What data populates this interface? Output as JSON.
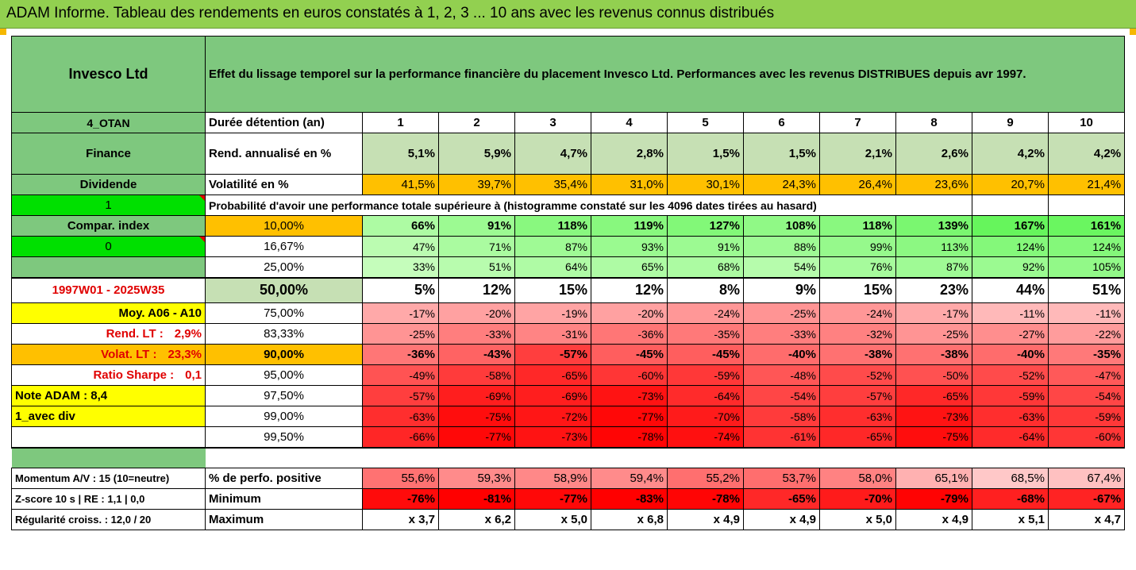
{
  "title": "ADAM Informe. Tableau des rendements en euros constatés à 1, 2, 3 ... 10 ans avec les revenus connus distribués",
  "company": "Invesco Ltd",
  "header_text": "Effet du lissage temporel sur la performance financière du placement Invesco Ltd. Performances avec les revenus DISTRIBUES depuis avr 1997.",
  "side": {
    "code": "4_OTAN",
    "sector": "Finance",
    "dividend": "Dividende",
    "one": "1",
    "compar": "Compar. index",
    "zero": "0",
    "period": "1997W01 - 2025W35",
    "moy": "Moy. A06 - A10",
    "rend_lt_label": "Rend. LT :",
    "rend_lt_value": "2,9%",
    "volat_lt_label": "Volat. LT :",
    "volat_lt_value": "23,3%",
    "sharpe_label": "Ratio Sharpe :",
    "sharpe_value": "0,1",
    "note": "Note ADAM : 8,4",
    "avec_div": "1_avec div",
    "momentum": "Momentum A/V : 15 (10=neutre)",
    "zscore": "Z-score 10 s  |  RE : 1,1  |  0,0",
    "regularite": "Régularité croiss. : 12,0 / 20"
  },
  "labels": {
    "duree": "Durée détention (an)",
    "rend": "Rend. annualisé en %",
    "vol": "Volatilité en %",
    "proba": "Probabilité d'avoir une performance totale supérieure à (histogramme constaté sur les 4096 dates tirées au hasard)",
    "perfpos": "% de perfo. positive",
    "minimum": "Minimum",
    "maximum": "Maximum"
  },
  "years": [
    "1",
    "2",
    "3",
    "4",
    "5",
    "6",
    "7",
    "8",
    "9",
    "10"
  ],
  "rend": [
    "5,1%",
    "5,9%",
    "4,7%",
    "2,8%",
    "1,5%",
    "1,5%",
    "2,1%",
    "2,6%",
    "4,2%",
    "4,2%"
  ],
  "vol": [
    "41,5%",
    "39,7%",
    "35,4%",
    "31,0%",
    "30,1%",
    "24,3%",
    "26,4%",
    "23,6%",
    "20,7%",
    "21,4%"
  ],
  "quantile_rows": [
    {
      "q": "10,00%",
      "v": [
        "66%",
        "91%",
        "118%",
        "119%",
        "127%",
        "108%",
        "118%",
        "139%",
        "167%",
        "161%"
      ]
    },
    {
      "q": "16,67%",
      "v": [
        "47%",
        "71%",
        "87%",
        "93%",
        "91%",
        "88%",
        "99%",
        "113%",
        "124%",
        "124%"
      ]
    },
    {
      "q": "25,00%",
      "v": [
        "33%",
        "51%",
        "64%",
        "65%",
        "68%",
        "54%",
        "76%",
        "87%",
        "92%",
        "105%"
      ]
    },
    {
      "q": "50,00%",
      "v": [
        "5%",
        "12%",
        "15%",
        "12%",
        "8%",
        "9%",
        "15%",
        "23%",
        "44%",
        "51%"
      ]
    },
    {
      "q": "75,00%",
      "v": [
        "-17%",
        "-20%",
        "-19%",
        "-20%",
        "-24%",
        "-25%",
        "-24%",
        "-17%",
        "-11%",
        "-11%"
      ]
    },
    {
      "q": "83,33%",
      "v": [
        "-25%",
        "-33%",
        "-31%",
        "-36%",
        "-35%",
        "-33%",
        "-32%",
        "-25%",
        "-27%",
        "-22%"
      ]
    },
    {
      "q": "90,00%",
      "v": [
        "-36%",
        "-43%",
        "-57%",
        "-45%",
        "-45%",
        "-40%",
        "-38%",
        "-38%",
        "-40%",
        "-35%"
      ]
    },
    {
      "q": "95,00%",
      "v": [
        "-49%",
        "-58%",
        "-65%",
        "-60%",
        "-59%",
        "-48%",
        "-52%",
        "-50%",
        "-52%",
        "-47%"
      ]
    },
    {
      "q": "97,50%",
      "v": [
        "-57%",
        "-69%",
        "-69%",
        "-73%",
        "-64%",
        "-54%",
        "-57%",
        "-65%",
        "-59%",
        "-54%"
      ]
    },
    {
      "q": "99,00%",
      "v": [
        "-63%",
        "-75%",
        "-72%",
        "-77%",
        "-70%",
        "-58%",
        "-63%",
        "-73%",
        "-63%",
        "-59%"
      ]
    },
    {
      "q": "99,50%",
      "v": [
        "-66%",
        "-77%",
        "-73%",
        "-78%",
        "-74%",
        "-61%",
        "-65%",
        "-75%",
        "-64%",
        "-60%"
      ]
    }
  ],
  "perfpos": [
    "55,6%",
    "59,3%",
    "58,9%",
    "59,4%",
    "55,2%",
    "53,7%",
    "58,0%",
    "65,1%",
    "68,5%",
    "67,4%"
  ],
  "minimum": [
    "-76%",
    "-81%",
    "-77%",
    "-83%",
    "-78%",
    "-65%",
    "-70%",
    "-79%",
    "-68%",
    "-67%"
  ],
  "maximum": [
    "x 3,7",
    "x 6,2",
    "x 5,0",
    "x 6,8",
    "x 4,9",
    "x 4,9",
    "x 5,0",
    "x 4,9",
    "x 5,1",
    "x 4,7"
  ],
  "colors": {
    "header_green": "#7ec87e",
    "title_bar": "#92d050",
    "bright_green": "#00e000",
    "yellow": "#ffff00",
    "orange": "#ffc000",
    "red_text": "#e00000"
  }
}
